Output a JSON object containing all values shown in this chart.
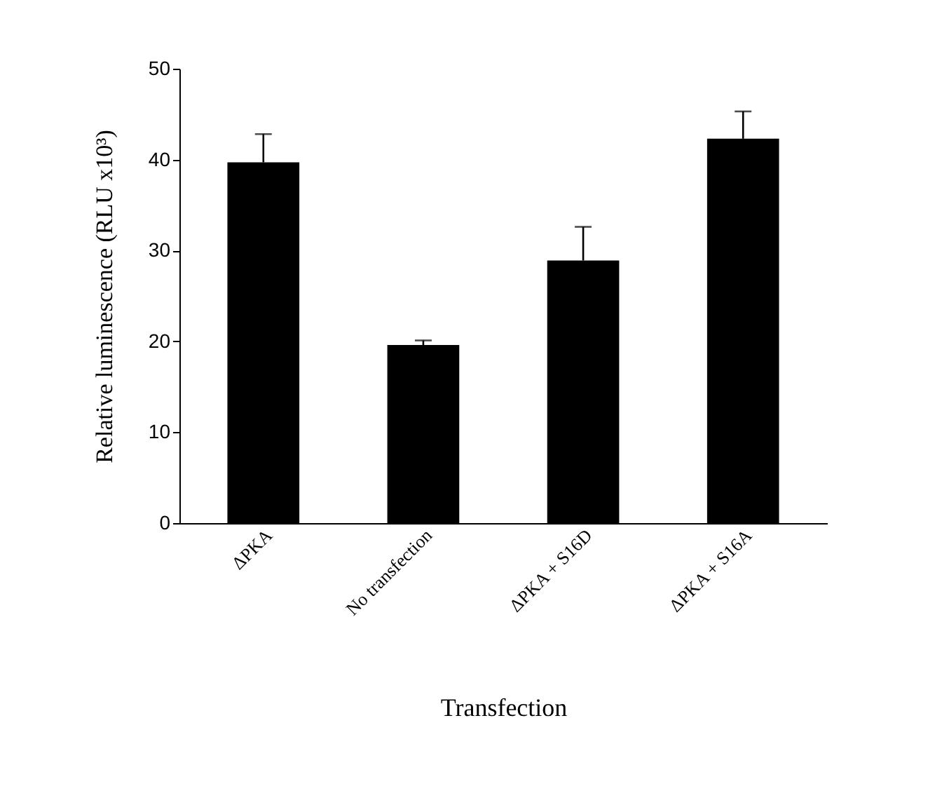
{
  "chart_data": {
    "type": "bar",
    "xlabel": "Transfection",
    "ylabel": "Relative luminescence (RLU x10³)",
    "categories": [
      "ΔPKA",
      "No transfection",
      "ΔPKA + S16D",
      "ΔPKA + S16A"
    ],
    "values": [
      39.7,
      19.6,
      28.9,
      42.3
    ],
    "errors": [
      [
        39.7,
        42.8
      ],
      [
        19.6,
        20.1
      ],
      [
        28.9,
        32.6
      ],
      [
        42.3,
        45.3
      ]
    ],
    "color": "#000000",
    "ylim": [
      0,
      50
    ],
    "yticks": [
      0,
      10,
      20,
      30,
      40,
      50
    ],
    "grid": false
  }
}
